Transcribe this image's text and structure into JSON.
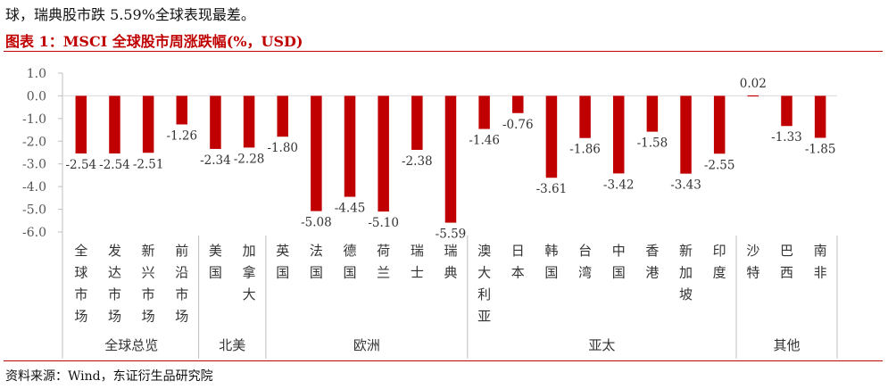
{
  "intro_text": "球，瑞典股市跌 5.59%全球表现最差。",
  "source_text": "资料来源：Wind，东证衍生品研究院",
  "chart_data": {
    "type": "bar",
    "title": "图表 1：MSCI 全球股市周涨跌幅(%，USD)",
    "xlabel": "",
    "ylabel": "",
    "ylim": [
      -6.0,
      1.0
    ],
    "yticks": [
      "1.0",
      "0.0",
      "-1.0",
      "-2.0",
      "-3.0",
      "-4.0",
      "-5.0",
      "-6.0"
    ],
    "grid": false,
    "legend": "none",
    "bar_color": "#c00000",
    "categories": [
      "全球市场",
      "发达市场",
      "新兴市场",
      "前沿市场",
      "美国",
      "加拿大",
      "英国",
      "法国",
      "德国",
      "荷兰",
      "瑞士",
      "瑞典",
      "澳大利亚",
      "日本",
      "韩国",
      "台湾",
      "中国",
      "香港",
      "新加坡",
      "印度",
      "沙特",
      "巴西",
      "南非"
    ],
    "values": [
      -2.54,
      -2.54,
      -2.51,
      -1.26,
      -2.34,
      -2.28,
      -1.8,
      -5.08,
      -4.45,
      -5.1,
      -2.38,
      -5.59,
      -1.46,
      -0.76,
      -3.61,
      -1.86,
      -3.42,
      -1.58,
      -3.43,
      -2.55,
      0.02,
      -1.33,
      -1.85
    ],
    "value_labels": [
      "-2.54",
      "-2.54",
      "-2.51",
      "-1.26",
      "-2.34",
      "-2.28",
      "-1.80",
      "-5.08",
      "-4.45",
      "-5.10",
      "-2.38",
      "-5.59",
      "-1.46",
      "-0.76",
      "-3.61",
      "-1.86",
      "-3.42",
      "-1.58",
      "-3.43",
      "-2.55",
      "0.02",
      "-1.33",
      "-1.85"
    ],
    "groups": [
      {
        "name": "全球总览",
        "count": 4
      },
      {
        "name": "北美",
        "count": 2
      },
      {
        "name": "欧洲",
        "count": 6
      },
      {
        "name": "亚太",
        "count": 8
      },
      {
        "name": "其他",
        "count": 3
      }
    ]
  }
}
